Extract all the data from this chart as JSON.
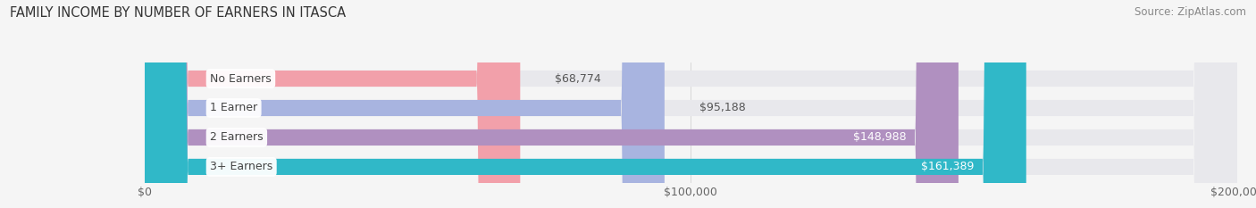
{
  "title": "FAMILY INCOME BY NUMBER OF EARNERS IN ITASCA",
  "source": "Source: ZipAtlas.com",
  "categories": [
    "No Earners",
    "1 Earner",
    "2 Earners",
    "3+ Earners"
  ],
  "values": [
    68774,
    95188,
    148988,
    161389
  ],
  "bar_colors": [
    "#f2a0aa",
    "#a8b4e0",
    "#b090c0",
    "#30b8c8"
  ],
  "bar_bg_color": "#e8e8ec",
  "label_colors_inside": [
    false,
    false,
    true,
    true
  ],
  "xlim": [
    0,
    200000
  ],
  "xticks": [
    0,
    100000,
    200000
  ],
  "xtick_labels": [
    "$0",
    "$100,000",
    "$200,000"
  ],
  "background_color": "#f5f5f5",
  "title_fontsize": 10.5,
  "source_fontsize": 8.5,
  "label_fontsize": 9,
  "tick_fontsize": 9,
  "cat_fontsize": 9
}
